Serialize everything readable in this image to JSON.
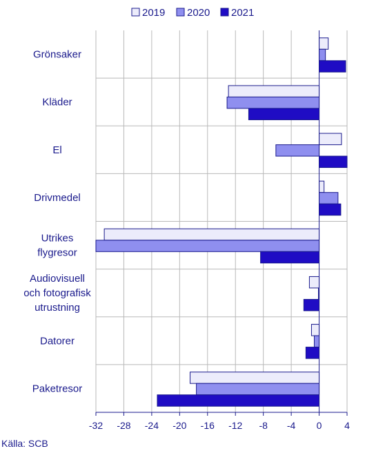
{
  "source": "Källa: SCB",
  "colors": {
    "text": "#1a1a8c",
    "grid": "#b8b8b8",
    "axis": "#1a1a8c",
    "bar_stroke": "#1a1a8c"
  },
  "chart_data": {
    "type": "bar",
    "orientation": "horizontal",
    "title": "",
    "xlabel": "",
    "ylabel": "",
    "categories": [
      "Grönsaker",
      "Kläder",
      "El",
      "Drivmedel",
      "Utrikes flygresor",
      "Audiovisuell och fotografisk utrustning",
      "Datorer",
      "Paketresor"
    ],
    "category_lines": [
      [
        "Grönsaker"
      ],
      [
        "Kläder"
      ],
      [
        "El"
      ],
      [
        "Drivmedel"
      ],
      [
        "Utrikes",
        "flygresor"
      ],
      [
        "Audiovisuell",
        "och fotografisk",
        "utrustning"
      ],
      [
        "Datorer"
      ],
      [
        "Paketresor"
      ]
    ],
    "series": [
      {
        "name": "2019",
        "color": "#ececfb",
        "values": [
          1.3,
          -13.0,
          3.2,
          0.7,
          -30.8,
          -1.4,
          -1.1,
          -18.5
        ]
      },
      {
        "name": "2020",
        "color": "#8f8fef",
        "values": [
          0.9,
          -13.2,
          -6.2,
          2.7,
          -32.0,
          -0.1,
          -0.7,
          -17.6
        ]
      },
      {
        "name": "2021",
        "color": "#1f0cc4",
        "values": [
          3.8,
          -10.1,
          4.0,
          3.1,
          -8.4,
          -2.2,
          -1.9,
          -23.2
        ]
      }
    ],
    "xlim": [
      -32,
      4
    ],
    "xticks": [
      "-32",
      "-28",
      "-24",
      "-20",
      "-16",
      "-12",
      "-8",
      "-4",
      "0",
      "4"
    ],
    "tick_values": [
      -32,
      -28,
      -24,
      -20,
      -16,
      -12,
      -8,
      -4,
      0,
      4
    ],
    "grid": true,
    "legend_position": "top"
  }
}
